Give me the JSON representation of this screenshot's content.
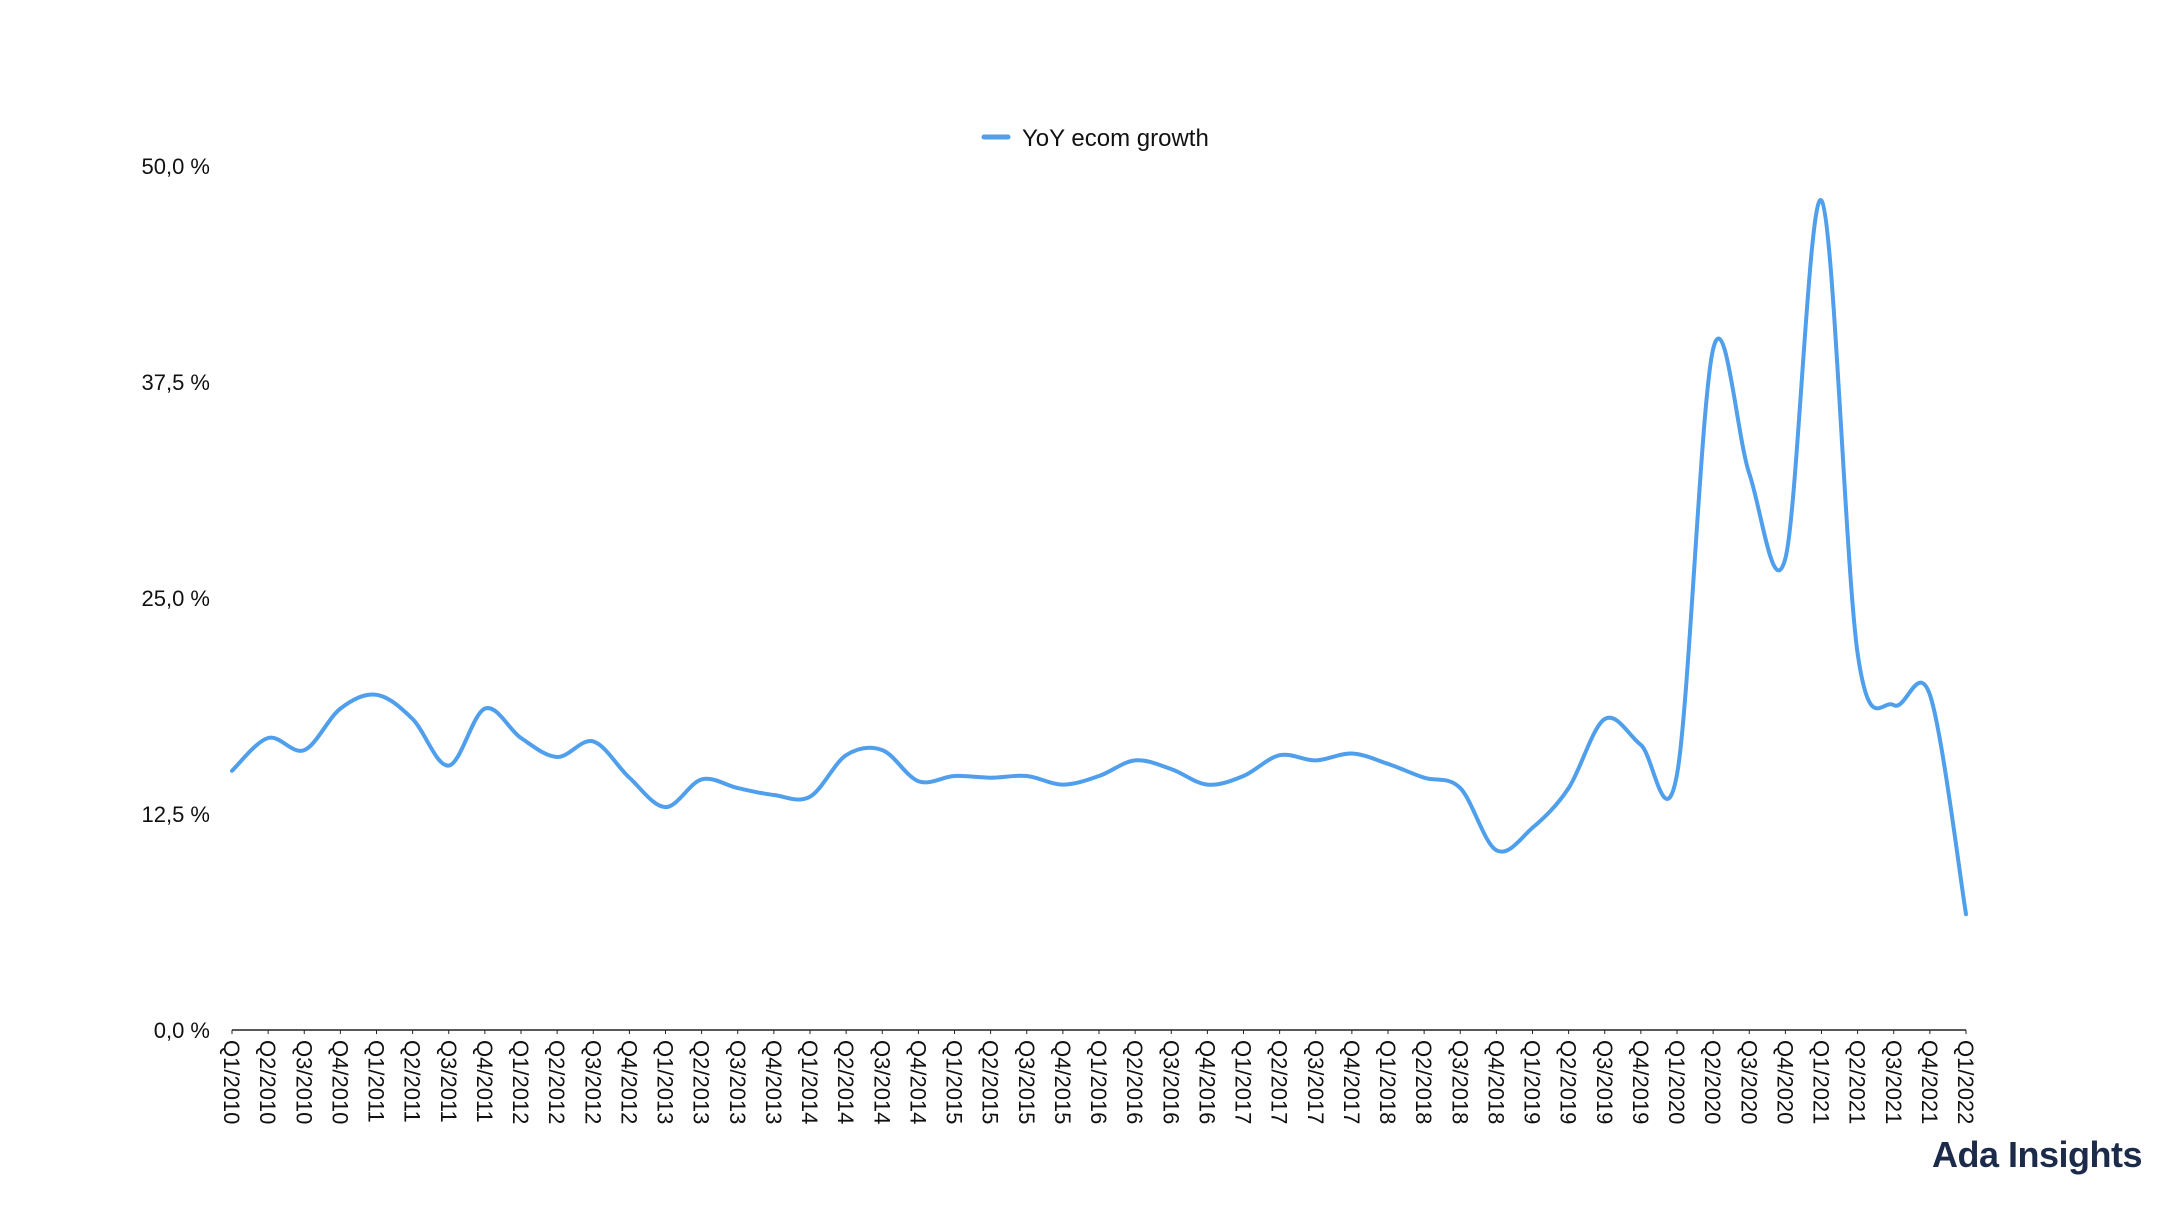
{
  "brand": {
    "text": "Ada Insights",
    "color": "#1c2b4a"
  },
  "chart_data": {
    "type": "line",
    "title": "",
    "xlabel": "",
    "ylabel": "",
    "ylim": [
      0,
      50
    ],
    "y_ticks": [
      0,
      12.5,
      25,
      37.5,
      50
    ],
    "y_tick_labels": [
      "0,0 %",
      "12,5 %",
      "25,0 %",
      "37,5 %",
      "50,0 %"
    ],
    "grid": false,
    "legend_position": "top-center",
    "line_color": "#4f9fec",
    "categories": [
      "Q1/2010",
      "Q2/2010",
      "Q3/2010",
      "Q4/2010",
      "Q1/2011",
      "Q2/2011",
      "Q3/2011",
      "Q4/2011",
      "Q1/2012",
      "Q2/2012",
      "Q3/2012",
      "Q4/2012",
      "Q1/2013",
      "Q2/2013",
      "Q3/2013",
      "Q4/2013",
      "Q1/2014",
      "Q2/2014",
      "Q3/2014",
      "Q4/2014",
      "Q1/2015",
      "Q2/2015",
      "Q3/2015",
      "Q4/2015",
      "Q1/2016",
      "Q2/2016",
      "Q3/2016",
      "Q4/2016",
      "Q1/2017",
      "Q2/2017",
      "Q3/2017",
      "Q4/2017",
      "Q1/2018",
      "Q2/2018",
      "Q3/2018",
      "Q4/2018",
      "Q1/2019",
      "Q2/2019",
      "Q3/2019",
      "Q4/2019",
      "Q1/2020",
      "Q2/2020",
      "Q3/2020",
      "Q4/2020",
      "Q1/2021",
      "Q2/2021",
      "Q3/2021",
      "Q4/2021",
      "Q1/2022"
    ],
    "series": [
      {
        "name": "YoY ecom growth",
        "values": [
          15.0,
          16.9,
          16.2,
          18.6,
          19.4,
          18.0,
          15.3,
          18.6,
          16.9,
          15.8,
          16.7,
          14.6,
          12.9,
          14.5,
          14.0,
          13.6,
          13.5,
          15.9,
          16.2,
          14.4,
          14.7,
          14.6,
          14.7,
          14.2,
          14.7,
          15.6,
          15.1,
          14.2,
          14.7,
          15.9,
          15.6,
          16.0,
          15.4,
          14.6,
          14.0,
          10.4,
          11.7,
          14.0,
          18.0,
          16.5,
          14.8,
          39.4,
          32.2,
          27.3,
          48.0,
          21.8,
          18.8,
          19.4,
          6.7
        ]
      }
    ]
  }
}
